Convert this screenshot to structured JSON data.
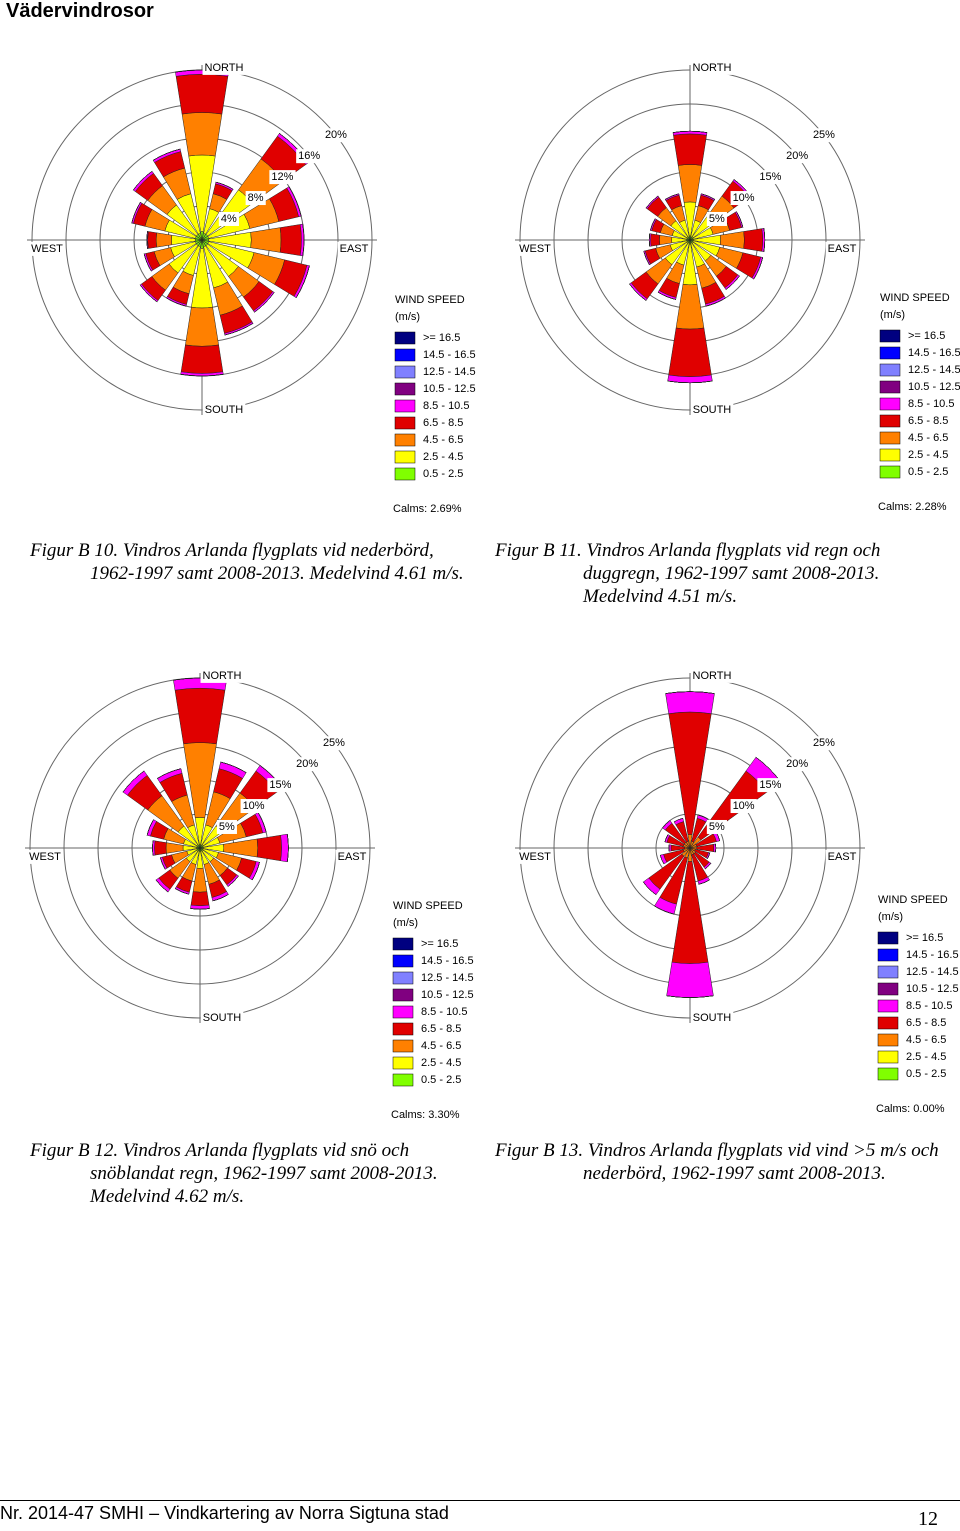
{
  "header": {
    "title": "Vädervindrosor"
  },
  "chart_data": [
    {
      "type": "windrose",
      "caption": "Figur B 10. Vindros Arlanda flygplats vid nederbörd, 1962-1997 samt 2008-2013. Medelvind 4.61 m/s.",
      "categories": [
        "NORTH",
        null,
        null,
        null,
        "EAST",
        null,
        null,
        null,
        "SOUTH",
        null,
        null,
        null,
        "WEST",
        null,
        null,
        null
      ],
      "rlim": [
        0,
        20
      ],
      "rticks": [
        {
          "value": 4,
          "label": "4%"
        },
        {
          "value": 8,
          "label": "8%"
        },
        {
          "value": 12,
          "label": "12%"
        },
        {
          "value": 16,
          "label": "16%"
        },
        {
          "value": 20,
          "label": "20%"
        }
      ],
      "legend_title": "WIND SPEED",
      "legend_unit": "(m/s)",
      "calms": "Calms: 2.69%",
      "series": [
        {
          "name": ">= 16.5",
          "color": "#000080",
          "values": [
            0,
            0,
            0,
            0,
            0,
            0,
            0,
            0,
            0,
            0,
            0,
            0,
            0,
            0,
            0,
            0
          ]
        },
        {
          "name": "14.5 - 16.5",
          "color": "#0000ff",
          "values": [
            0,
            0,
            0,
            0,
            0,
            0,
            0,
            0,
            0,
            0,
            0,
            0,
            0,
            0,
            0,
            0
          ]
        },
        {
          "name": "12.5 - 14.5",
          "color": "#8080ff",
          "values": [
            0,
            0,
            0,
            0,
            0,
            0,
            0,
            0,
            0,
            0,
            0,
            0,
            0,
            0,
            0,
            0
          ]
        },
        {
          "name": "10.5 - 12.5",
          "color": "#800080",
          "values": [
            0,
            0,
            0,
            0,
            0,
            0,
            0,
            0,
            0,
            0,
            0,
            0,
            0,
            0,
            0,
            0
          ]
        },
        {
          "name": "8.5 - 10.5",
          "color": "#ff00ff",
          "values": [
            0.5,
            0.2,
            0.4,
            0.3,
            0.3,
            0.3,
            0.2,
            0.2,
            0.3,
            0.2,
            0.2,
            0.2,
            0.1,
            0.2,
            0.3,
            0.3
          ]
        },
        {
          "name": "6.5 - 8.5",
          "color": "#e00000",
          "values": [
            4.5,
            1.2,
            3.3,
            2.4,
            2.4,
            2.7,
            2,
            2.2,
            3.2,
            1.3,
            1.5,
            1,
            1,
            1.4,
            1.8,
            2
          ]
        },
        {
          "name": "4.5 - 6.5",
          "color": "#ff8000",
          "values": [
            5,
            1.8,
            4.5,
            3.5,
            3.5,
            3.7,
            3,
            3.3,
            4.5,
            2.2,
            2.5,
            2,
            1.8,
            2.4,
            2.8,
            3.1
          ]
        },
        {
          "name": "2.5 - 4.5",
          "color": "#ffff00",
          "values": [
            9,
            3,
            6.5,
            5,
            5,
            5.5,
            4.5,
            5,
            7,
            3.5,
            4,
            3,
            2.8,
            3.7,
            4.3,
            4.8
          ]
        },
        {
          "name": "0.5 - 2.5",
          "color": "#80ff00",
          "values": [
            1,
            0.8,
            0.8,
            0.8,
            0.8,
            0.8,
            0.8,
            0.8,
            1,
            0.8,
            0.8,
            0.8,
            0.8,
            0.8,
            0.8,
            0.8
          ]
        }
      ]
    },
    {
      "type": "windrose",
      "caption": "Figur B 11. Vindros Arlanda flygplats vid regn och duggregn, 1962-1997 samt 2008-2013. Medelvind 4.51 m/s.",
      "categories": [
        "NORTH",
        null,
        null,
        null,
        "EAST",
        null,
        null,
        null,
        "SOUTH",
        null,
        null,
        null,
        "WEST",
        null,
        null,
        null
      ],
      "rlim": [
        0,
        25
      ],
      "rticks": [
        {
          "value": 5,
          "label": "5%"
        },
        {
          "value": 10,
          "label": "10%"
        },
        {
          "value": 15,
          "label": "15%"
        },
        {
          "value": 20,
          "label": "20%"
        },
        {
          "value": 25,
          "label": "25%"
        }
      ],
      "legend_title": "WIND SPEED",
      "legend_unit": "(m/s)",
      "calms": "Calms: 2.28%",
      "series": [
        {
          "name": ">= 16.5",
          "color": "#000080",
          "values": [
            0,
            0,
            0,
            0,
            0,
            0,
            0,
            0,
            0,
            0,
            0,
            0,
            0,
            0,
            0,
            0
          ]
        },
        {
          "name": "14.5 - 16.5",
          "color": "#0000ff",
          "values": [
            0,
            0,
            0,
            0,
            0,
            0,
            0,
            0,
            0,
            0,
            0,
            0,
            0,
            0,
            0,
            0
          ]
        },
        {
          "name": "12.5 - 14.5",
          "color": "#8080ff",
          "values": [
            0,
            0,
            0,
            0,
            0,
            0,
            0,
            0,
            0,
            0,
            0,
            0,
            0,
            0,
            0,
            0
          ]
        },
        {
          "name": "10.5 - 12.5",
          "color": "#800080",
          "values": [
            0,
            0,
            0,
            0,
            0,
            0,
            0,
            0,
            0,
            0,
            0,
            0,
            0,
            0,
            0,
            0
          ]
        },
        {
          "name": "8.5 - 10.5",
          "color": "#ff00ff",
          "values": [
            0.4,
            0.2,
            0.3,
            0.2,
            0.3,
            0.3,
            0.3,
            0.3,
            0.9,
            0.3,
            0.3,
            0.2,
            0.2,
            0.2,
            0.2,
            0.2
          ]
        },
        {
          "name": "6.5 - 8.5",
          "color": "#e00000",
          "values": [
            4.5,
            1.6,
            2.7,
            1.8,
            2.7,
            2.7,
            2.1,
            2.4,
            7,
            2.1,
            2.7,
            1.6,
            1.3,
            1.3,
            1.9,
            1.6
          ]
        },
        {
          "name": "4.5 - 6.5",
          "color": "#ff8000",
          "values": [
            5.5,
            2.2,
            3.5,
            2.5,
            3.5,
            3.5,
            2.8,
            3.2,
            6.5,
            2.8,
            3.5,
            2.2,
            1.8,
            1.8,
            2.4,
            2.2
          ]
        },
        {
          "name": "2.5 - 4.5",
          "color": "#ffff00",
          "values": [
            5,
            2.5,
            4,
            3,
            4,
            4,
            3.3,
            3.6,
            6,
            3.3,
            4,
            2.5,
            2.2,
            2.2,
            3,
            2.5
          ]
        },
        {
          "name": "0.5 - 2.5",
          "color": "#80ff00",
          "values": [
            0.6,
            0.5,
            0.5,
            0.5,
            0.5,
            0.5,
            0.5,
            0.5,
            0.6,
            0.5,
            0.5,
            0.5,
            0.5,
            0.5,
            0.5,
            0.5
          ]
        }
      ]
    },
    {
      "type": "windrose",
      "caption": "Figur B 12. Vindros Arlanda flygplats vid snö och snöblandat regn, 1962-1997 samt 2008-2013. Medelvind 4.62 m/s.",
      "categories": [
        "NORTH",
        null,
        null,
        null,
        "EAST",
        null,
        null,
        null,
        "SOUTH",
        null,
        null,
        null,
        "WEST",
        null,
        null,
        null
      ],
      "rlim": [
        0,
        25
      ],
      "rticks": [
        {
          "value": 5,
          "label": "5%"
        },
        {
          "value": 10,
          "label": "10%"
        },
        {
          "value": 15,
          "label": "15%"
        },
        {
          "value": 20,
          "label": "20%"
        },
        {
          "value": 25,
          "label": "25%"
        }
      ],
      "legend_title": "WIND SPEED",
      "legend_unit": "(m/s)",
      "calms": "Calms: 3.30%",
      "series": [
        {
          "name": ">= 16.5",
          "color": "#000080",
          "values": [
            0,
            0,
            0,
            0,
            0,
            0,
            0,
            0,
            0,
            0,
            0,
            0,
            0,
            0,
            0,
            0
          ]
        },
        {
          "name": "14.5 - 16.5",
          "color": "#0000ff",
          "values": [
            0,
            0,
            0,
            0,
            0,
            0,
            0,
            0,
            0,
            0,
            0,
            0,
            0,
            0,
            0,
            0
          ]
        },
        {
          "name": "12.5 - 14.5",
          "color": "#8080ff",
          "values": [
            0,
            0,
            0,
            0,
            0,
            0,
            0,
            0,
            0,
            0,
            0,
            0,
            0,
            0,
            0,
            0
          ]
        },
        {
          "name": "10.5 - 12.5",
          "color": "#800080",
          "values": [
            0,
            0,
            0,
            0,
            0,
            0,
            0,
            0,
            0,
            0,
            0,
            0,
            0,
            0,
            0,
            0
          ]
        },
        {
          "name": "8.5 - 10.5",
          "color": "#ff00ff",
          "values": [
            1.5,
            1,
            1,
            0.5,
            1,
            0.5,
            0.3,
            0.5,
            0.5,
            0.3,
            0.5,
            0.3,
            0.3,
            0.5,
            0.8,
            0.7
          ]
        },
        {
          "name": "6.5 - 8.5",
          "color": "#e00000",
          "values": [
            8,
            3.5,
            4,
            2.5,
            3.5,
            2.2,
            1.7,
            2,
            2,
            1.7,
            2,
            1.4,
            1.7,
            2,
            3.7,
            3.3
          ]
        },
        {
          "name": "4.5 - 6.5",
          "color": "#ff8000",
          "values": [
            11,
            5,
            6,
            4,
            5,
            3.5,
            2.5,
            3,
            3.5,
            2.5,
            3,
            2.3,
            2.5,
            3,
            5.5,
            4.5
          ]
        },
        {
          "name": "2.5 - 4.5",
          "color": "#ffff00",
          "values": [
            4,
            3,
            3.5,
            2.5,
            3,
            2.3,
            2,
            2,
            2.5,
            2,
            2,
            1.5,
            2,
            2,
            3.5,
            3
          ]
        },
        {
          "name": "0.5 - 2.5",
          "color": "#80ff00",
          "values": [
            0.5,
            0.5,
            0.5,
            0.5,
            0.5,
            0.5,
            0.5,
            0.5,
            0.5,
            0.5,
            0.5,
            0.5,
            0.5,
            0.5,
            0.5,
            0.5
          ]
        }
      ]
    },
    {
      "type": "windrose",
      "caption": "Figur B 13. Vindros Arlanda flygplats vid vind >5 m/s och nederbörd, 1962-1997 samt 2008-2013.",
      "categories": [
        "NORTH",
        null,
        null,
        null,
        "EAST",
        null,
        null,
        null,
        "SOUTH",
        null,
        null,
        null,
        "WEST",
        null,
        null,
        null
      ],
      "rlim": [
        0,
        25
      ],
      "rticks": [
        {
          "value": 5,
          "label": "5%"
        },
        {
          "value": 10,
          "label": "10%"
        },
        {
          "value": 15,
          "label": "15%"
        },
        {
          "value": 20,
          "label": "20%"
        },
        {
          "value": 25,
          "label": "25%"
        }
      ],
      "legend_title": "WIND SPEED",
      "legend_unit": "(m/s)",
      "calms": "Calms: 0.00%",
      "series": [
        {
          "name": ">= 16.5",
          "color": "#000080",
          "values": [
            0,
            0,
            0,
            0,
            0,
            0,
            0,
            0,
            0,
            0,
            0,
            0,
            0,
            0,
            0,
            0
          ]
        },
        {
          "name": "14.5 - 16.5",
          "color": "#0000ff",
          "values": [
            0,
            0,
            0,
            0,
            0,
            0,
            0,
            0,
            0,
            0,
            0,
            0,
            0,
            0,
            0,
            0
          ]
        },
        {
          "name": "12.5 - 14.5",
          "color": "#8080ff",
          "values": [
            0,
            0,
            0,
            0,
            0,
            0,
            0,
            0,
            0,
            0,
            0,
            0,
            0,
            0,
            0,
            0
          ]
        },
        {
          "name": "10.5 - 12.5",
          "color": "#800080",
          "values": [
            0,
            0,
            0,
            0,
            0,
            0,
            0,
            0,
            0,
            0,
            0,
            0,
            0,
            0,
            0,
            0
          ]
        },
        {
          "name": "8.5 - 10.5",
          "color": "#ff00ff",
          "values": [
            3,
            0.5,
            2.5,
            0.5,
            0.3,
            0.2,
            0.3,
            0.5,
            5,
            1.5,
            1,
            0.5,
            0.3,
            0.3,
            0.5,
            0.5
          ]
        },
        {
          "name": "6.5 - 8.5",
          "color": "#e00000",
          "values": [
            18,
            3.5,
            12,
            3,
            2.5,
            2,
            2.5,
            4,
            15,
            7,
            6,
            3,
            2,
            2.5,
            3.5,
            3
          ]
        },
        {
          "name": "4.5 - 6.5",
          "color": "#ff8000",
          "values": [
            2,
            1,
            2,
            1,
            1,
            0.8,
            1,
            1,
            2,
            1.5,
            1.5,
            1,
            0.8,
            1,
            1,
            1
          ]
        },
        {
          "name": "2.5 - 4.5",
          "color": "#ffff00",
          "values": [
            0,
            0,
            0,
            0,
            0,
            0,
            0,
            0,
            0,
            0,
            0,
            0,
            0,
            0,
            0,
            0
          ]
        },
        {
          "name": "0.5 - 2.5",
          "color": "#80ff00",
          "values": [
            0,
            0,
            0,
            0,
            0,
            0,
            0,
            0,
            0,
            0,
            0,
            0,
            0,
            0,
            0,
            0
          ]
        }
      ]
    }
  ],
  "footer": {
    "text": "Nr. 2014-47 SMHI – Vindkartering av Norra Sigtuna stad",
    "page": "12"
  }
}
